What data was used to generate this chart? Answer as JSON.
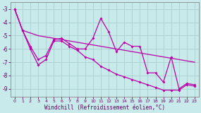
{
  "title": "",
  "xlabel": "Windchill (Refroidissement éolien,°C)",
  "background_color": "#c8eaea",
  "grid_color": "#aacfcf",
  "line_color": "#bb00aa",
  "xlim": [
    -0.5,
    23.5
  ],
  "ylim": [
    -9.6,
    -2.5
  ],
  "yticks": [
    -9,
    -8,
    -7,
    -6,
    -5,
    -4,
    -3
  ],
  "xticks": [
    0,
    1,
    2,
    3,
    4,
    5,
    6,
    7,
    8,
    9,
    10,
    11,
    12,
    13,
    14,
    15,
    16,
    17,
    18,
    19,
    20,
    21,
    22,
    23
  ],
  "line1_x": [
    0,
    1,
    2,
    3,
    4,
    5,
    6,
    7,
    8,
    9,
    10,
    11,
    12,
    13,
    14,
    15,
    16,
    17,
    18,
    19,
    20,
    21,
    22,
    23
  ],
  "line1_y": [
    -3.0,
    -4.6,
    -4.8,
    -5.0,
    -5.1,
    -5.2,
    -5.3,
    -5.4,
    -5.5,
    -5.6,
    -5.7,
    -5.8,
    -5.9,
    -6.0,
    -6.1,
    -6.2,
    -6.3,
    -6.4,
    -6.5,
    -6.6,
    -6.7,
    -6.8,
    -6.9,
    -7.0
  ],
  "line2_x": [
    0,
    1,
    2,
    3,
    4,
    5,
    6,
    7,
    8,
    9,
    10,
    11,
    12,
    13,
    14,
    15,
    16,
    17,
    18,
    19,
    20,
    21,
    22,
    23
  ],
  "line2_y": [
    -3.0,
    -4.6,
    -5.8,
    -6.8,
    -6.5,
    -5.3,
    -5.2,
    -5.6,
    -6.0,
    -6.0,
    -5.2,
    -3.7,
    -4.7,
    -6.2,
    -5.5,
    -5.8,
    -5.8,
    -7.8,
    -7.8,
    -8.5,
    -6.6,
    -9.0,
    -8.6,
    -8.7
  ],
  "line3_x": [
    0,
    1,
    2,
    3,
    4,
    5,
    6,
    7,
    8,
    9,
    10,
    11,
    12,
    13,
    14,
    15,
    16,
    17,
    18,
    19,
    20,
    21,
    22,
    23
  ],
  "line3_y": [
    -3.0,
    -4.6,
    -6.0,
    -7.2,
    -6.8,
    -5.4,
    -5.4,
    -5.8,
    -6.1,
    -6.6,
    -6.8,
    -7.3,
    -7.6,
    -7.9,
    -8.1,
    -8.3,
    -8.5,
    -8.7,
    -8.9,
    -9.1,
    -9.1,
    -9.1,
    -8.7,
    -8.8
  ]
}
